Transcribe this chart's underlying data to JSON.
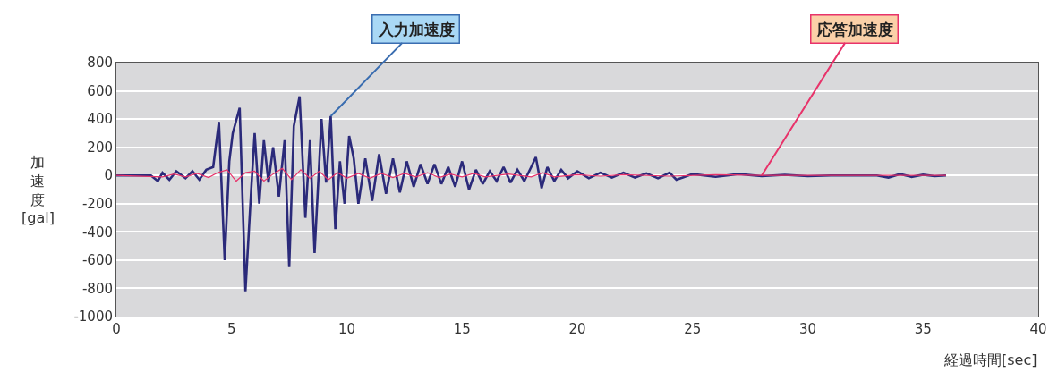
{
  "chart_data": {
    "type": "line",
    "xlabel": "経過時間[sec]",
    "ylabel": "加速度[gal]",
    "xlim": [
      0,
      40
    ],
    "xticks": [
      0,
      5,
      10,
      15,
      20,
      25,
      30,
      35,
      40
    ],
    "ylim": [
      -1000,
      800
    ],
    "yticks": [
      -1000,
      -800,
      -600,
      -400,
      -200,
      0,
      200,
      400,
      600,
      800
    ],
    "grid": "y",
    "legend": false,
    "series": [
      {
        "name": "入力加速度",
        "color": "#2b2a7a",
        "x": [
          0,
          1.5,
          1.8,
          2.0,
          2.3,
          2.6,
          3.0,
          3.3,
          3.6,
          3.9,
          4.2,
          4.45,
          4.7,
          4.9,
          5.05,
          5.35,
          5.6,
          5.85,
          6.0,
          6.2,
          6.4,
          6.6,
          6.8,
          7.05,
          7.3,
          7.5,
          7.7,
          7.95,
          8.2,
          8.4,
          8.6,
          8.9,
          9.1,
          9.3,
          9.5,
          9.7,
          9.9,
          10.1,
          10.3,
          10.5,
          10.8,
          11.1,
          11.4,
          11.7,
          12.0,
          12.3,
          12.6,
          12.9,
          13.2,
          13.5,
          13.8,
          14.1,
          14.4,
          14.7,
          15.0,
          15.3,
          15.6,
          15.9,
          16.2,
          16.5,
          16.8,
          17.1,
          17.4,
          17.7,
          18.0,
          18.2,
          18.45,
          18.7,
          19.0,
          19.3,
          19.6,
          20.0,
          20.5,
          21.0,
          21.5,
          22.0,
          22.5,
          23.0,
          23.5,
          24.0,
          24.3,
          25.0,
          26.0,
          27.0,
          28.0,
          29.0,
          30.0,
          31.0,
          32.0,
          33.0,
          33.5,
          34.0,
          34.5,
          35.0,
          35.5,
          36.0
        ],
        "values": [
          0,
          0,
          -40,
          20,
          -30,
          30,
          -20,
          30,
          -30,
          40,
          60,
          380,
          -600,
          100,
          300,
          480,
          -820,
          -100,
          300,
          -200,
          250,
          -50,
          200,
          -150,
          250,
          -650,
          350,
          560,
          -300,
          250,
          -550,
          400,
          -50,
          420,
          -380,
          100,
          -200,
          280,
          120,
          -200,
          120,
          -180,
          150,
          -130,
          120,
          -120,
          100,
          -80,
          80,
          -60,
          80,
          -60,
          60,
          -80,
          100,
          -100,
          40,
          -60,
          30,
          -40,
          60,
          -50,
          40,
          -40,
          60,
          130,
          -90,
          60,
          -40,
          40,
          -20,
          30,
          -20,
          20,
          -15,
          20,
          -15,
          15,
          -20,
          20,
          -30,
          10,
          -10,
          10,
          -5,
          5,
          -5,
          0,
          0,
          0,
          -15,
          10,
          -10,
          5,
          -5,
          0
        ]
      },
      {
        "name": "応答加速度",
        "color": "#e8336a",
        "x": [
          0,
          2.0,
          2.5,
          3.0,
          3.5,
          4.0,
          4.4,
          4.8,
          5.2,
          5.6,
          6.0,
          6.4,
          6.8,
          7.2,
          7.6,
          8.0,
          8.4,
          8.8,
          9.2,
          9.6,
          10.0,
          10.5,
          11.0,
          11.5,
          12.0,
          12.5,
          13.0,
          13.5,
          14.0,
          14.5,
          15.0,
          15.5,
          16.0,
          17.0,
          18.0,
          18.5,
          19.0,
          20.0,
          21.0,
          22.0,
          24.0,
          26.0,
          28.0,
          30.0,
          33.0,
          36.0
        ],
        "values": [
          0,
          -10,
          10,
          -10,
          15,
          -15,
          20,
          40,
          -40,
          20,
          30,
          -40,
          10,
          50,
          -30,
          40,
          -20,
          30,
          -30,
          20,
          -20,
          15,
          -20,
          15,
          -15,
          15,
          -10,
          20,
          -15,
          10,
          -10,
          15,
          -10,
          10,
          -10,
          20,
          -10,
          5,
          -5,
          5,
          -5,
          5,
          0,
          0,
          0,
          0
        ]
      }
    ]
  }
}
